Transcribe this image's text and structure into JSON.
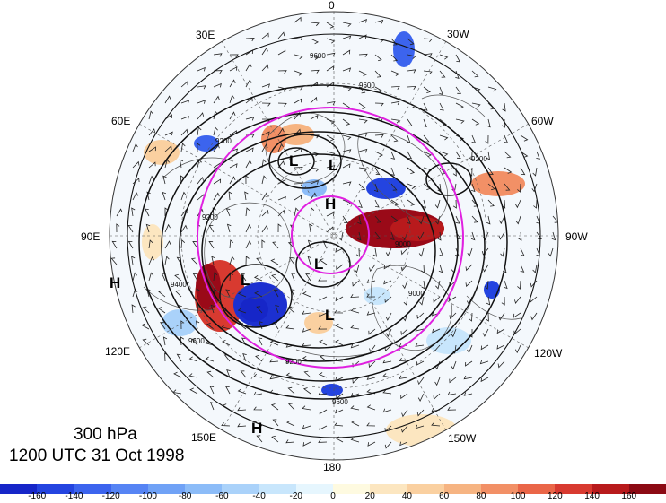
{
  "title": {
    "level": "300 hPa",
    "time": "1200 UTC 31 Oct 1998"
  },
  "longitude_labels": [
    {
      "text": "0",
      "name": "lon-label-0"
    },
    {
      "text": "30W",
      "name": "lon-label-30w"
    },
    {
      "text": "60W",
      "name": "lon-label-60w"
    },
    {
      "text": "90W",
      "name": "lon-label-90w"
    },
    {
      "text": "120W",
      "name": "lon-label-120w"
    },
    {
      "text": "150W",
      "name": "lon-label-150w"
    },
    {
      "text": "180",
      "name": "lon-label-180"
    },
    {
      "text": "150E",
      "name": "lon-label-150e"
    },
    {
      "text": "120E",
      "name": "lon-label-120e"
    },
    {
      "text": "90E",
      "name": "lon-label-90e"
    },
    {
      "text": "60E",
      "name": "lon-label-60e"
    },
    {
      "text": "30E",
      "name": "lon-label-30e"
    }
  ],
  "pressure_centers": [
    {
      "text": "L",
      "name": "low-center-europe"
    },
    {
      "text": "L",
      "name": "low-center-scandinavia"
    },
    {
      "text": "H",
      "name": "high-center-arctic"
    },
    {
      "text": "L",
      "name": "low-center-pole"
    },
    {
      "text": "L",
      "name": "low-center-siberia"
    },
    {
      "text": "L",
      "name": "low-center-bering"
    },
    {
      "text": "H",
      "name": "high-center-west-margin"
    },
    {
      "text": "H",
      "name": "high-center-pacific"
    }
  ],
  "contour_labels": [
    "9600",
    "9600",
    "9200",
    "9200",
    "9200",
    "9000",
    "9000",
    "9400",
    "9600",
    "9200",
    "9600"
  ],
  "colorbar": {
    "ticks": [
      "-160",
      "-140",
      "-120",
      "-100",
      "-80",
      "-60",
      "-40",
      "-20",
      "0",
      "20",
      "40",
      "60",
      "80",
      "100",
      "120",
      "140",
      "160"
    ],
    "colors": [
      "#1626c8",
      "#2444e0",
      "#3c64ee",
      "#5684f4",
      "#70a2f6",
      "#8cbcf8",
      "#aad2fa",
      "#c8e6fc",
      "#e6f6fe",
      "#fefae0",
      "#fce6c0",
      "#fad0a0",
      "#f6b482",
      "#f29066",
      "#ea6648",
      "#d83a30",
      "#b81a1c",
      "#8c0a14"
    ]
  },
  "magenta_circles": 3
}
